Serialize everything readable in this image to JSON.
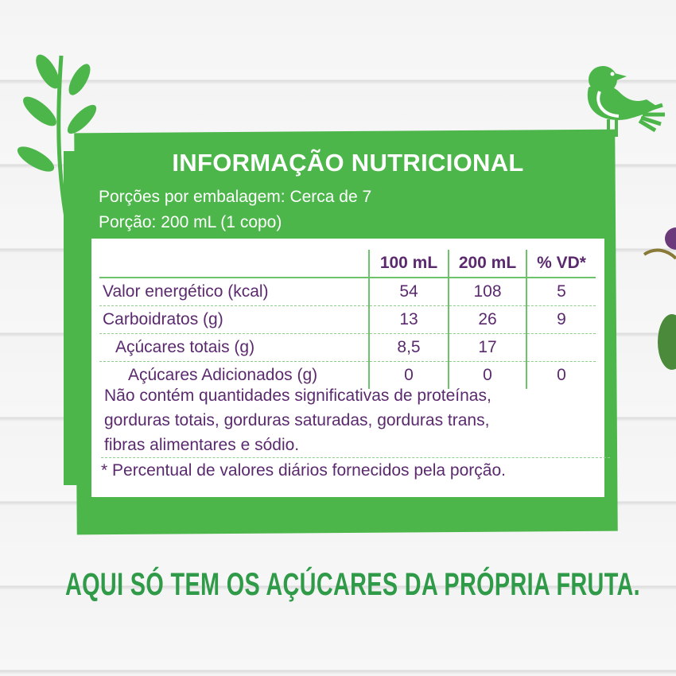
{
  "label": {
    "title": "INFORMAÇÃO NUTRICIONAL",
    "servings_per_package": "Porções por embalagem: Cerca de 7",
    "serving_size": "Porção: 200 mL (1 copo)",
    "columns": [
      "",
      "100 mL",
      "200 mL",
      "% VD*"
    ],
    "rows": [
      {
        "name": "Valor energético (kcal)",
        "v100": "54",
        "v200": "108",
        "vd": "5"
      },
      {
        "name": "Carboidratos (g)",
        "v100": "13",
        "v200": "26",
        "vd": "9"
      },
      {
        "name": "Açúcares totais (g)",
        "v100": "8,5",
        "v200": "17",
        "vd": ""
      },
      {
        "name": "Açúcares Adicionados (g)",
        "v100": "0",
        "v200": "0",
        "vd": "0"
      }
    ],
    "note_lines": [
      "Não contém quantidades significativas de proteínas,",
      "gorduras totais, gorduras saturadas, gorduras trans,",
      "fibras alimentares e sódio."
    ],
    "footnote": "* Percentual de valores diários fornecidos pela porção."
  },
  "slogan": "AQUI SÓ TEM OS AÇÚCARES DA PRÓPRIA FRUTA.",
  "colors": {
    "green": "#4cb64a",
    "purple": "#5b2a6e",
    "slogan": "#2f9a48"
  },
  "icons": [
    "bird-icon",
    "leaf-branch-icon",
    "plum-icon"
  ]
}
